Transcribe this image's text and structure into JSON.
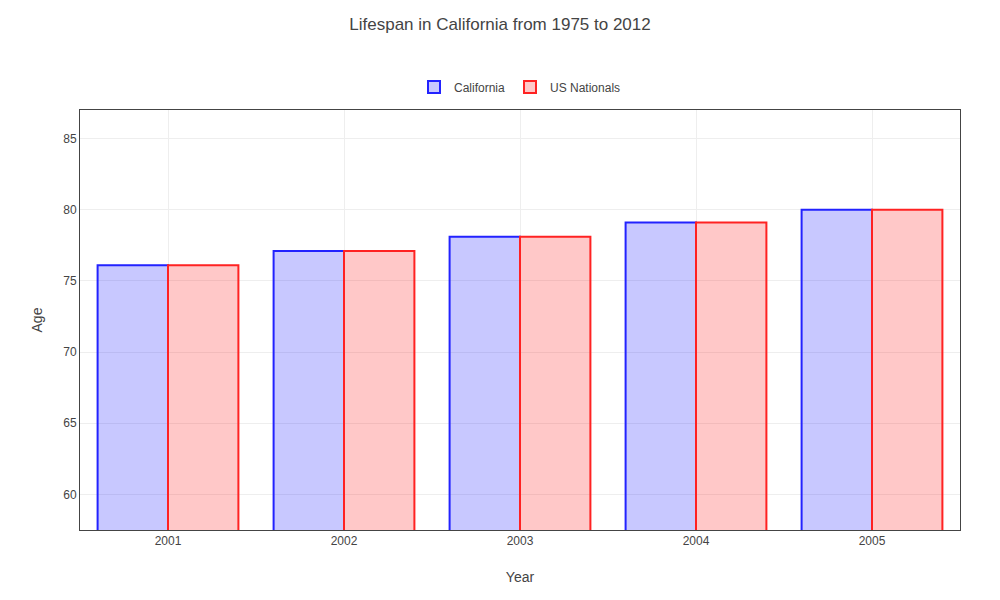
{
  "chart_data": {
    "type": "bar",
    "title": "Lifespan in California from 1975 to 2012",
    "xlabel": "Year",
    "ylabel": "Age",
    "categories": [
      "2001",
      "2002",
      "2003",
      "2004",
      "2005"
    ],
    "series": [
      {
        "name": "California",
        "color": "#2222ff",
        "values": [
          76.1,
          77.1,
          78.1,
          79.1,
          80.0
        ]
      },
      {
        "name": "US Nationals",
        "color": "#ff2222",
        "values": [
          76.1,
          77.1,
          78.1,
          79.1,
          80.0
        ]
      }
    ],
    "ylim": [
      57.5,
      87
    ],
    "yticks": [
      60,
      65,
      70,
      75,
      80,
      85
    ],
    "grid": true,
    "legend": "upper center"
  }
}
